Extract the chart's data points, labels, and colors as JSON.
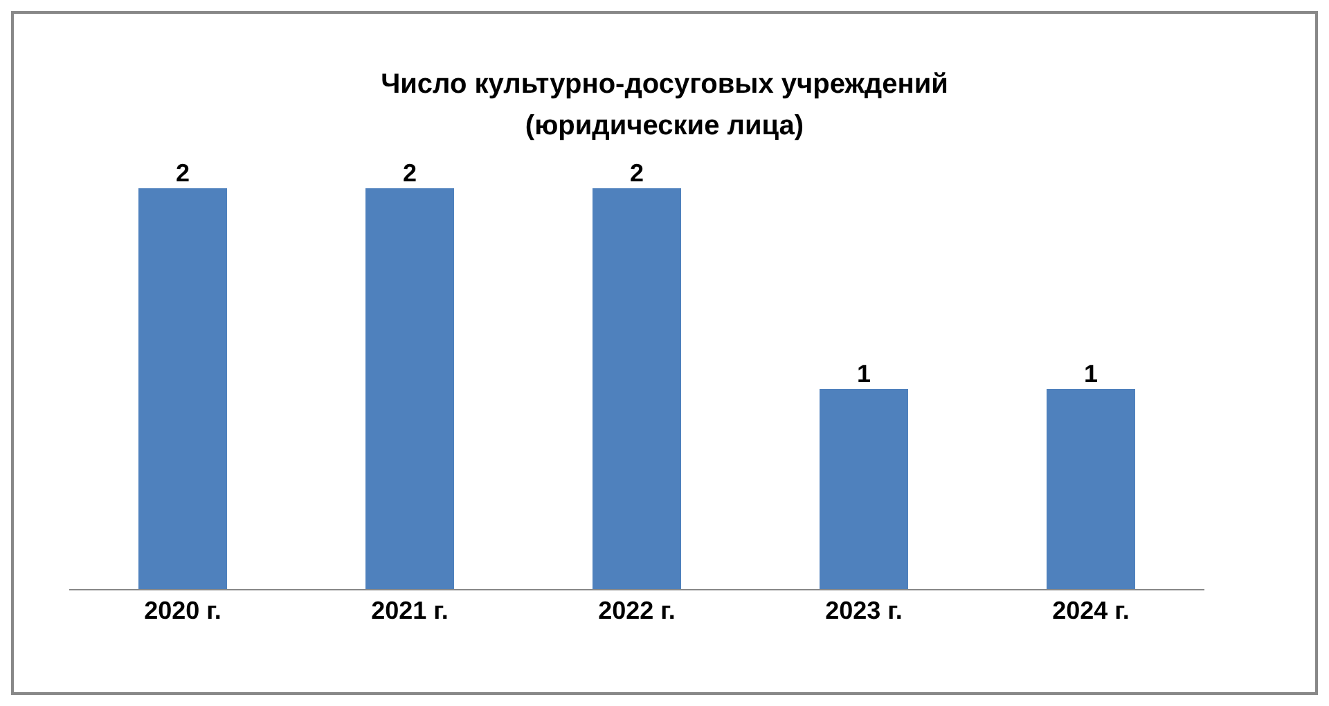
{
  "chart_data": {
    "type": "bar",
    "title": "Число культурно-досуговых учреждений (юридические лица)",
    "categories": [
      "2020 г.",
      "2021 г.",
      "2022 г.",
      "2023 г.",
      "2024 г."
    ],
    "values": [
      2,
      2,
      2,
      1,
      1
    ],
    "color": "#4f81bd",
    "data_labels": true
  }
}
